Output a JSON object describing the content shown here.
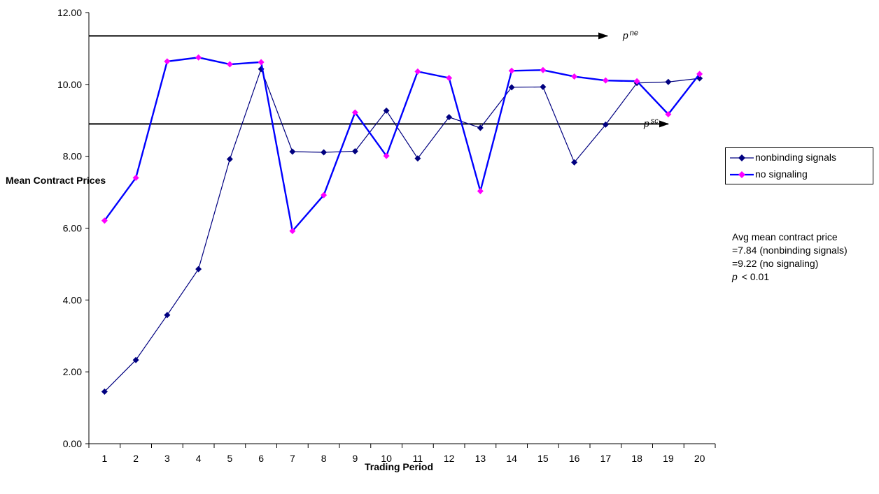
{
  "chart_data": {
    "type": "line",
    "xlabel": "Trading Period",
    "ylabel": "Mean Contract Prices",
    "categories": [
      "1",
      "2",
      "3",
      "4",
      "5",
      "6",
      "7",
      "8",
      "9",
      "10",
      "11",
      "12",
      "13",
      "14",
      "15",
      "16",
      "17",
      "18",
      "19",
      "20"
    ],
    "ylim": [
      0,
      12
    ],
    "yticks": [
      "0.00",
      "2.00",
      "4.00",
      "6.00",
      "8.00",
      "10.00",
      "12.00"
    ],
    "grid": false,
    "legend_position": "right",
    "series": [
      {
        "name": "nonbinding signals",
        "color": "#000080",
        "marker": "diamond",
        "values": [
          1.45,
          2.33,
          3.58,
          4.86,
          7.92,
          10.43,
          8.13,
          8.11,
          8.14,
          9.27,
          7.94,
          9.09,
          8.79,
          9.92,
          9.93,
          7.83,
          8.88,
          10.04,
          10.07,
          10.17
        ]
      },
      {
        "name": "no signaling",
        "color": "#0000FF",
        "marker_color": "#FF00FF",
        "marker": "diamond",
        "values": [
          6.21,
          7.4,
          10.64,
          10.75,
          10.56,
          10.62,
          5.92,
          6.92,
          9.22,
          8.01,
          10.36,
          10.18,
          7.03,
          10.38,
          10.4,
          10.22,
          10.11,
          10.09,
          9.17,
          10.29
        ]
      }
    ],
    "reference_lines": [
      {
        "symbol": "p",
        "superscript": "ne",
        "value": 11.35
      },
      {
        "symbol": "p",
        "superscript": "sc",
        "value": 8.9
      }
    ],
    "annotation": {
      "line1": "Avg mean contract price",
      "line2": "=7.84 (nonbinding signals)",
      "line3": "=9.22 (no signaling)",
      "p_symbol": "p",
      "p_text": "< 0.01"
    }
  }
}
